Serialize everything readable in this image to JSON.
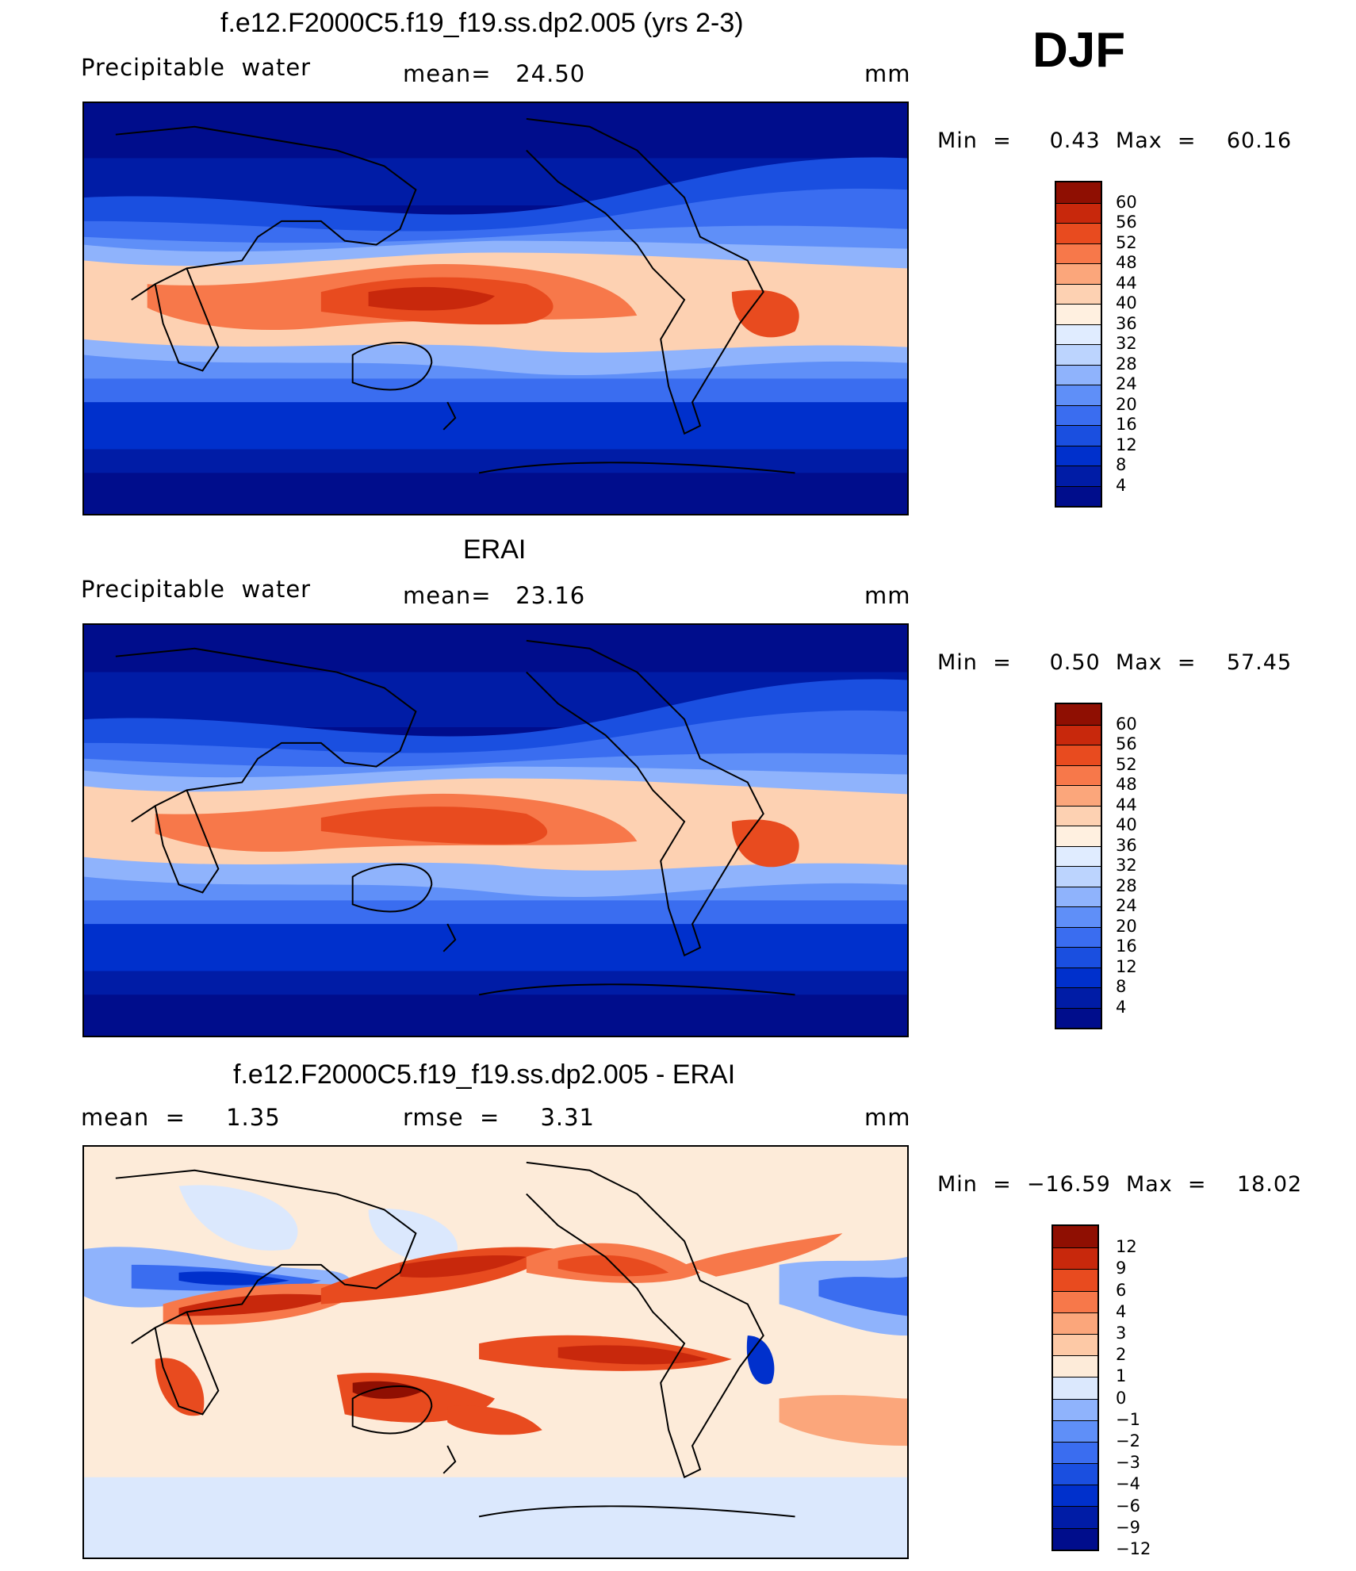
{
  "season": "DJF",
  "panels": [
    {
      "title": "f.e12.F2000C5.f19_f19.ss.dp2.005 (yrs 2-3)",
      "left_label": "Precipitable  water",
      "center_label": "mean=   24.50",
      "units": "mm",
      "minmax": "Min  =     0.43  Max  =    60.16",
      "colorbar_labels": [
        "60",
        "56",
        "52",
        "48",
        "44",
        "40",
        "36",
        "32",
        "28",
        "24",
        "20",
        "16",
        "12",
        "8",
        "4"
      ]
    },
    {
      "title": "ERAI",
      "left_label": "Precipitable  water",
      "center_label": "mean=   23.16",
      "units": "mm",
      "minmax": "Min  =     0.50  Max  =    57.45",
      "colorbar_labels": [
        "60",
        "56",
        "52",
        "48",
        "44",
        "40",
        "36",
        "32",
        "28",
        "24",
        "20",
        "16",
        "12",
        "8",
        "4"
      ]
    },
    {
      "title": "f.e12.F2000C5.f19_f19.ss.dp2.005 - ERAI",
      "left_label": "mean  =     1.35",
      "center_label": "rmse  =     3.31",
      "units": "mm",
      "minmax": "Min  =  −16.59  Max  =    18.02",
      "colorbar_labels": [
        "12",
        "9",
        "6",
        "4",
        "3",
        "2",
        "1",
        "0",
        "−1",
        "−2",
        "−3",
        "−4",
        "−6",
        "−9",
        "−12"
      ]
    }
  ],
  "colors": {
    "abs_scale": [
      "#000d8c",
      "#001ca6",
      "#0030cc",
      "#1a4fe0",
      "#3a6df0",
      "#5f8ff8",
      "#8fb3fc",
      "#bcd4fe",
      "#e0ecff",
      "#fff0e0",
      "#fdd1b2",
      "#fba67b",
      "#f7784a",
      "#e84b1f",
      "#c8280c",
      "#8f0f02"
    ],
    "diff_scale": [
      "#000d8c",
      "#001ca6",
      "#0030cc",
      "#1a4fe0",
      "#3a6df0",
      "#5f8ff8",
      "#8fb3fc",
      "#dbe8fd",
      "#fdebd9",
      "#fdc9a6",
      "#fba67b",
      "#f7784a",
      "#e84b1f",
      "#c8280c",
      "#8f0f02"
    ]
  }
}
